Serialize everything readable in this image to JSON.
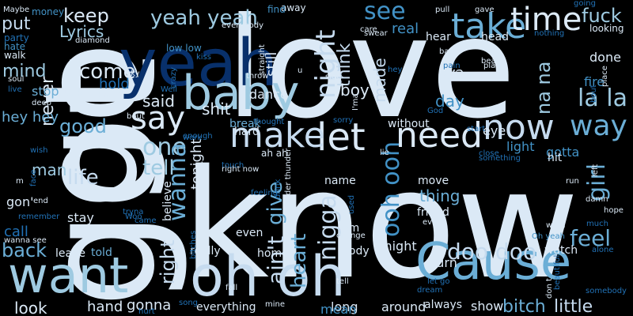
{
  "colors": {
    "background": "#000000",
    "c0": "#dbe9f6",
    "c1": "#c6dbef",
    "c2": "#9ecae1",
    "c3": "#6baed6",
    "c4": "#4292c6",
    "c5": "#2171b5",
    "c6": "#08519c",
    "c7": "#08306b"
  },
  "words": [
    {
      "text": "know",
      "color": "c0"
    },
    {
      "text": "love",
      "color": "c0"
    },
    {
      "text": "got",
      "color": "c0"
    },
    {
      "text": "go",
      "color": "c0"
    },
    {
      "text": "yeah",
      "color": "c7"
    },
    {
      "text": "oh oh",
      "color": "c1"
    },
    {
      "text": "want",
      "color": "c2"
    },
    {
      "text": "Cause",
      "color": "c3"
    },
    {
      "text": "baby",
      "color": "c2"
    },
    {
      "text": "take",
      "color": "c3"
    },
    {
      "text": "time",
      "color": "c0"
    },
    {
      "text": "let",
      "color": "c0"
    },
    {
      "text": "need",
      "color": "c0"
    },
    {
      "text": "make",
      "color": "c1"
    },
    {
      "text": "now",
      "color": "c1"
    },
    {
      "text": "way",
      "color": "c3"
    },
    {
      "text": "say",
      "color": "c0"
    },
    {
      "text": "yeah yeah",
      "color": "c2"
    },
    {
      "text": "one",
      "color": "c2"
    },
    {
      "text": "night",
      "color": "c1"
    },
    {
      "text": "see",
      "color": "c4"
    },
    {
      "text": "fuck",
      "color": "c2"
    },
    {
      "text": "come",
      "color": "c0"
    },
    {
      "text": "keep",
      "color": "c0"
    },
    {
      "text": "put",
      "color": "c1"
    },
    {
      "text": "Lyrics",
      "color": "c2"
    },
    {
      "text": "la la",
      "color": "c2"
    },
    {
      "text": "feel",
      "color": "c3"
    },
    {
      "text": "girl",
      "color": "c3"
    },
    {
      "text": "wanna",
      "color": "c3"
    },
    {
      "text": "tell",
      "color": "c2"
    },
    {
      "text": "life",
      "color": "c1"
    },
    {
      "text": "good",
      "color": "c3"
    },
    {
      "text": "right",
      "color": "c1"
    },
    {
      "text": "ain't",
      "color": "c1"
    },
    {
      "text": "heart",
      "color": "c3"
    },
    {
      "text": "give",
      "color": "c3"
    },
    {
      "text": "nigga",
      "color": "c1"
    },
    {
      "text": "ooh ooh",
      "color": "c4"
    },
    {
      "text": "doo doo",
      "color": "c1"
    },
    {
      "text": "back",
      "color": "c3"
    },
    {
      "text": "never",
      "color": "c0"
    },
    {
      "text": "think",
      "color": "c1"
    },
    {
      "text": "said",
      "color": "c0"
    },
    {
      "text": "boy",
      "color": "c0"
    },
    {
      "text": "shit",
      "color": "c0"
    },
    {
      "text": "man",
      "color": "c2"
    },
    {
      "text": "na na",
      "color": "c2"
    },
    {
      "text": "day",
      "color": "c4"
    },
    {
      "text": "made",
      "color": "c1"
    },
    {
      "text": "look",
      "color": "c0"
    },
    {
      "text": "hand",
      "color": "c0"
    },
    {
      "text": "gonna",
      "color": "c0"
    },
    {
      "text": "mind",
      "color": "c2"
    },
    {
      "text": "thing",
      "color": "c3"
    },
    {
      "text": "gotta",
      "color": "c4"
    },
    {
      "text": "light",
      "color": "c4"
    },
    {
      "text": "eye",
      "color": "c0"
    },
    {
      "text": "hold",
      "color": "c5"
    },
    {
      "text": "real",
      "color": "c4"
    },
    {
      "text": "ya",
      "color": "c0"
    },
    {
      "text": "fire",
      "color": "c4"
    },
    {
      "text": "little",
      "color": "c1"
    },
    {
      "text": "bitch",
      "color": "c3"
    },
    {
      "text": "show",
      "color": "c0"
    },
    {
      "text": "always",
      "color": "c0"
    },
    {
      "text": "long",
      "color": "c0"
    },
    {
      "text": "around",
      "color": "c0"
    },
    {
      "text": "mean",
      "color": "c4"
    },
    {
      "text": "everything",
      "color": "c0"
    },
    {
      "text": "call",
      "color": "c5"
    },
    {
      "text": "stay",
      "color": "c0"
    },
    {
      "text": "gon'",
      "color": "c0"
    },
    {
      "text": "tonight",
      "color": "c0"
    },
    {
      "text": "believe",
      "color": "c0"
    },
    {
      "text": "hear",
      "color": "c0"
    },
    {
      "text": "head",
      "color": "c0"
    },
    {
      "text": "done",
      "color": "c0"
    },
    {
      "text": "still",
      "color": "c0"
    },
    {
      "text": "dance",
      "color": "c0"
    },
    {
      "text": "talk",
      "color": "c0"
    },
    {
      "text": "stop",
      "color": "c3"
    },
    {
      "text": "hey hey",
      "color": "c3"
    },
    {
      "text": "try",
      "color": "c0"
    },
    {
      "text": "uh",
      "color": "c0"
    },
    {
      "text": "move",
      "color": "c0"
    },
    {
      "text": "friend",
      "color": "c0"
    },
    {
      "text": "name",
      "color": "c0"
    },
    {
      "text": "em",
      "color": "c0"
    },
    {
      "text": "even",
      "color": "c0"
    },
    {
      "text": "body",
      "color": "c0"
    },
    {
      "text": "might",
      "color": "c0"
    },
    {
      "text": "turn",
      "color": "c0"
    },
    {
      "text": "watch",
      "color": "c0"
    },
    {
      "text": "hit",
      "color": "c0"
    },
    {
      "text": "really",
      "color": "c0"
    },
    {
      "text": "home",
      "color": "c0"
    },
    {
      "text": "leave",
      "color": "c0"
    },
    {
      "text": "told",
      "color": "c3"
    },
    {
      "text": "break",
      "color": "c3"
    },
    {
      "text": "hard",
      "color": "c0"
    },
    {
      "text": "without",
      "color": "c0"
    },
    {
      "text": "will",
      "color": "c0"
    },
    {
      "text": "money",
      "color": "c4"
    },
    {
      "text": "away",
      "color": "c0"
    },
    {
      "text": "find",
      "color": "c4"
    },
    {
      "text": "party",
      "color": "c5"
    },
    {
      "text": "walk",
      "color": "c0"
    },
    {
      "text": "hate",
      "color": "c4"
    },
    {
      "text": "low low",
      "color": "c4"
    },
    {
      "text": "diamond",
      "color": "c0"
    },
    {
      "text": "everybody",
      "color": "c0"
    },
    {
      "text": "gave",
      "color": "c0"
    },
    {
      "text": "Maybe",
      "color": "c0"
    },
    {
      "text": "soul",
      "color": "c0"
    },
    {
      "text": "deep",
      "color": "c0"
    },
    {
      "text": "knew",
      "color": "c0"
    },
    {
      "text": "sky",
      "color": "c0"
    },
    {
      "text": "crazy",
      "color": "c5"
    },
    {
      "text": "kiss",
      "color": "c5"
    },
    {
      "text": "throw",
      "color": "c0"
    },
    {
      "text": "straight",
      "color": "c0"
    },
    {
      "text": "side",
      "color": "c0"
    },
    {
      "text": "care",
      "color": "c0"
    },
    {
      "text": "swear",
      "color": "c0"
    },
    {
      "text": "pull",
      "color": "c0"
    },
    {
      "text": "bad",
      "color": "c0"
    },
    {
      "text": "beat",
      "color": "c0"
    },
    {
      "text": "play",
      "color": "c0"
    },
    {
      "text": "pain",
      "color": "c5"
    },
    {
      "text": "better",
      "color": "c0"
    },
    {
      "text": "looking",
      "color": "c0"
    },
    {
      "text": "going",
      "color": "c5"
    },
    {
      "text": "nothing",
      "color": "c5"
    },
    {
      "text": "place",
      "color": "c0"
    },
    {
      "text": "ayy",
      "color": "c0"
    },
    {
      "text": "Well",
      "color": "c5"
    },
    {
      "text": "thought",
      "color": "c5"
    },
    {
      "text": "sorry",
      "color": "c5"
    },
    {
      "text": "I'ma",
      "color": "c0"
    },
    {
      "text": "God",
      "color": "c5"
    },
    {
      "text": "start",
      "color": "c5"
    },
    {
      "text": "close",
      "color": "c5"
    },
    {
      "text": "something",
      "color": "c5"
    },
    {
      "text": "left",
      "color": "c0"
    },
    {
      "text": "run",
      "color": "c0"
    },
    {
      "text": "damn",
      "color": "c0"
    },
    {
      "text": "hope",
      "color": "c0"
    },
    {
      "text": "much",
      "color": "c5"
    },
    {
      "text": "word",
      "color": "c0"
    },
    {
      "text": "Oh yeah",
      "color": "c4"
    },
    {
      "text": "alone",
      "color": "c5"
    },
    {
      "text": "somebody",
      "color": "c5"
    },
    {
      "text": "beautiful",
      "color": "c5"
    },
    {
      "text": "don t",
      "color": "c0"
    },
    {
      "text": "let go",
      "color": "c5"
    },
    {
      "text": "used",
      "color": "c5"
    },
    {
      "text": "change",
      "color": "c0"
    },
    {
      "text": "every",
      "color": "c0"
    },
    {
      "text": "dream",
      "color": "c5"
    },
    {
      "text": "drink",
      "color": "c5"
    },
    {
      "text": "feeling",
      "color": "c5"
    },
    {
      "text": "thunder thunder",
      "color": "c0"
    },
    {
      "text": "ah ah",
      "color": "c0"
    },
    {
      "text": "lie",
      "color": "c0"
    },
    {
      "text": "tryna",
      "color": "c5"
    },
    {
      "text": "Woo",
      "color": "c5"
    },
    {
      "text": "came",
      "color": "c5"
    },
    {
      "text": "bitches",
      "color": "c5"
    },
    {
      "text": "fall",
      "color": "c0"
    },
    {
      "text": "touch",
      "color": "c5"
    },
    {
      "text": "right now",
      "color": "c0"
    },
    {
      "text": "bout",
      "color": "c0"
    },
    {
      "text": "work",
      "color": "c5"
    },
    {
      "text": "enough",
      "color": "c5"
    },
    {
      "text": "wish",
      "color": "c5"
    },
    {
      "text": "face",
      "color": "c5"
    },
    {
      "text": "end",
      "color": "c0"
    },
    {
      "text": "remember",
      "color": "c5"
    },
    {
      "text": "wanna see",
      "color": "c0"
    },
    {
      "text": "hurt",
      "color": "c5"
    },
    {
      "text": "song",
      "color": "c5"
    },
    {
      "text": "mine",
      "color": "c0"
    },
    {
      "text": "tell",
      "color": "c0"
    },
    {
      "text": "m",
      "color": "c0"
    },
    {
      "text": "u",
      "color": "c0"
    },
    {
      "text": "hey",
      "color": "c5"
    },
    {
      "text": "live",
      "color": "c5"
    },
    {
      "text": "big",
      "color": "c0"
    },
    {
      "text": "bout",
      "color": "c5"
    }
  ]
}
